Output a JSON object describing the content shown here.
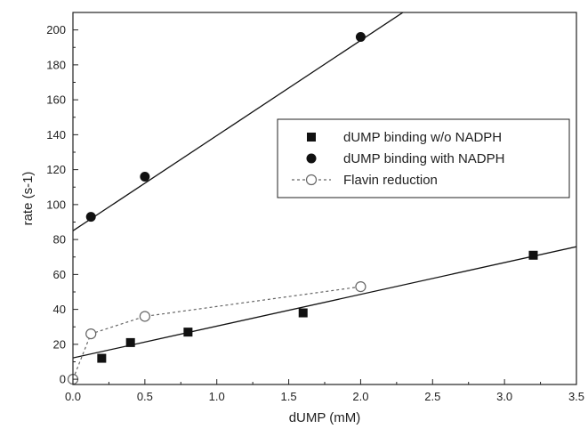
{
  "chart_data": {
    "type": "scatter",
    "xlabel": "dUMP (mM)",
    "ylabel": "rate (s-1)",
    "xlim": [
      0.0,
      3.5
    ],
    "ylim": [
      -3,
      210
    ],
    "xticks": [
      0.0,
      0.5,
      1.0,
      1.5,
      2.0,
      2.5,
      3.0,
      3.5
    ],
    "xtick_labels": [
      "0.0",
      "0.5",
      "1.0",
      "1.5",
      "2.0",
      "2.5",
      "3.0",
      "3.5"
    ],
    "yticks": [
      0,
      20,
      40,
      60,
      80,
      100,
      120,
      140,
      160,
      180,
      200
    ],
    "ytick_labels": [
      "0",
      "20",
      "40",
      "60",
      "80",
      "100",
      "120",
      "140",
      "160",
      "180",
      "200"
    ],
    "grid": false,
    "legend_position": "right",
    "series": [
      {
        "name": "dUMP binding w/o NADPH",
        "marker": "filled-square",
        "color": "#111111",
        "x": [
          0.2,
          0.4,
          0.8,
          1.6,
          3.2
        ],
        "y": [
          12,
          21,
          27,
          38,
          71
        ],
        "fit": {
          "slope": 18.2,
          "intercept": 12.2
        }
      },
      {
        "name": "dUMP binding with NADPH",
        "marker": "filled-circle",
        "color": "#111111",
        "x": [
          0.125,
          0.5,
          2.0
        ],
        "y": [
          93,
          116,
          196
        ],
        "fit": {
          "slope": 54.5,
          "intercept": 85
        }
      },
      {
        "name": "Flavin reduction",
        "marker": "open-circle",
        "line": "dashed",
        "color": "#666666",
        "x": [
          0.0,
          0.125,
          0.5,
          2.0
        ],
        "y": [
          0,
          26,
          36,
          53
        ]
      }
    ]
  }
}
